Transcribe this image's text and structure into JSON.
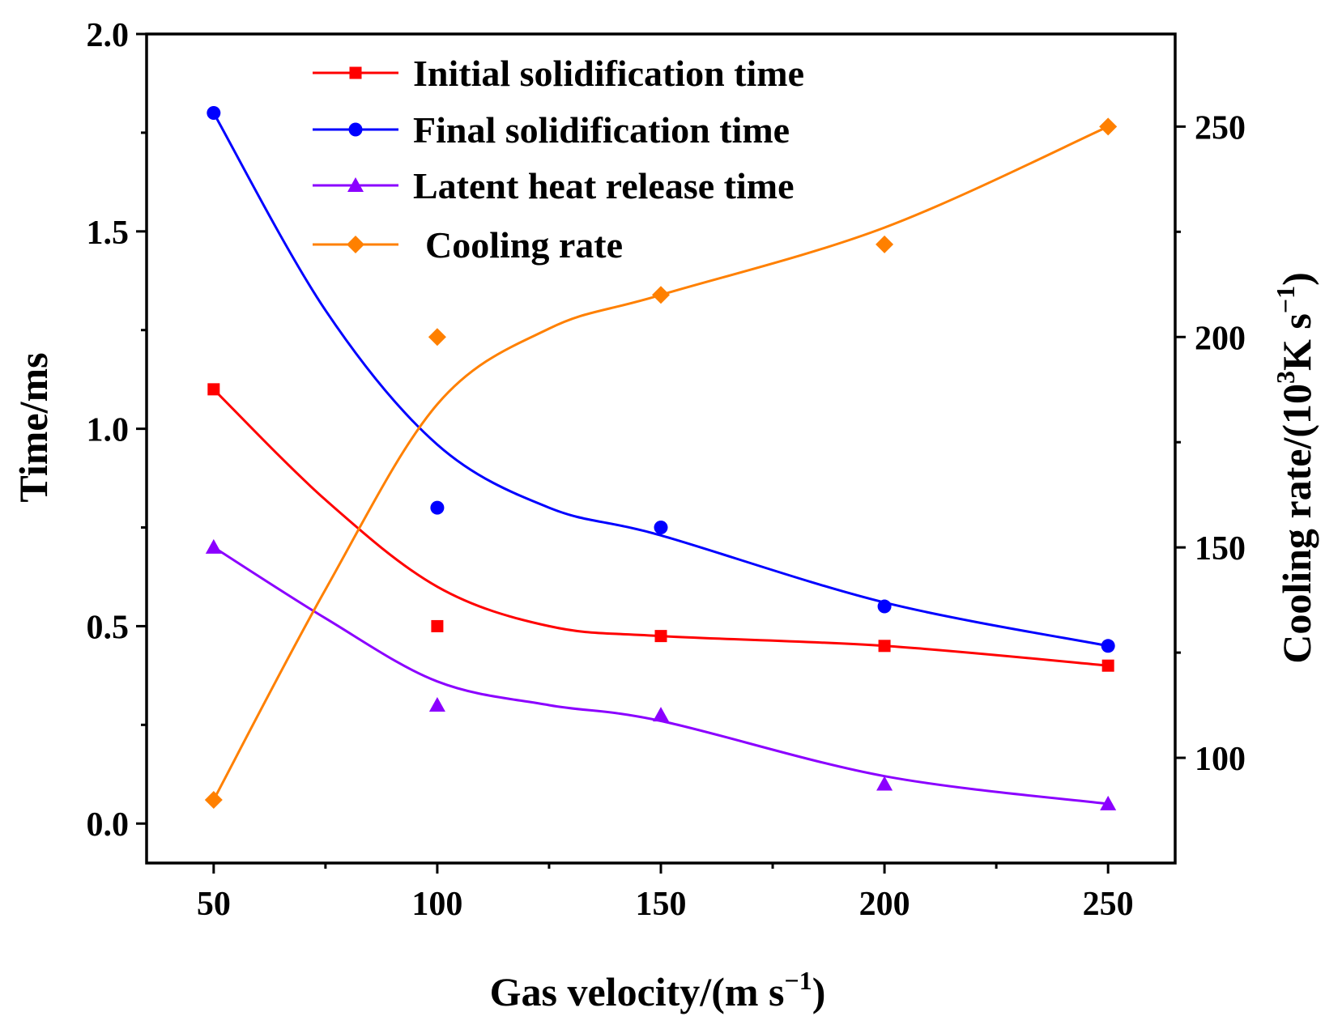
{
  "chart_data": {
    "type": "line",
    "title": "",
    "xlabel": "Gas velocity/(m s⁻¹)",
    "xlabel_parts": {
      "main": "Gas velocity/(m s",
      "sup": "−1",
      "close": ")"
    },
    "ylabel": "Time/ms",
    "y2label": "Cooling rate/(10³K s⁻¹)",
    "y2label_parts": {
      "a": "Cooling rate/(10",
      "sup1": "3",
      "b": "K s",
      "sup2": "−1",
      "c": ")"
    },
    "x": [
      50,
      100,
      150,
      200,
      250
    ],
    "xlim": [
      35,
      265
    ],
    "ylim": [
      -0.1,
      2.0
    ],
    "y2lim": [
      75,
      272
    ],
    "xticks": [
      50,
      100,
      150,
      200,
      250
    ],
    "xtick_labels": [
      "50",
      "100",
      "150",
      "200",
      "250"
    ],
    "yticks": [
      0.0,
      0.5,
      1.0,
      1.5,
      2.0
    ],
    "ytick_labels": [
      "0.0",
      "0.5",
      "1.0",
      "1.5",
      "2.0"
    ],
    "y2ticks": [
      100,
      150,
      200,
      250
    ],
    "y2tick_labels": [
      "100",
      "150",
      "200",
      "250"
    ],
    "legend_position": "top-center",
    "series": [
      {
        "name": "Initial solidification time",
        "axis": "left",
        "color": "#ff0000",
        "marker": "square",
        "values": [
          1.1,
          0.5,
          0.475,
          0.45,
          0.4
        ],
        "fit": [
          [
            50,
            1.1
          ],
          [
            75,
            0.82
          ],
          [
            100,
            0.6
          ],
          [
            125,
            0.5
          ],
          [
            150,
            0.475
          ],
          [
            200,
            0.45
          ],
          [
            250,
            0.4
          ]
        ]
      },
      {
        "name": "Final solidification time",
        "axis": "left",
        "color": "#0000ff",
        "marker": "circle",
        "values": [
          1.8,
          0.8,
          0.75,
          0.55,
          0.45
        ],
        "fit": [
          [
            50,
            1.8
          ],
          [
            75,
            1.3
          ],
          [
            100,
            0.96
          ],
          [
            125,
            0.8
          ],
          [
            150,
            0.73
          ],
          [
            200,
            0.56
          ],
          [
            250,
            0.45
          ]
        ]
      },
      {
        "name": "Latent heat release time",
        "axis": "left",
        "color": "#8b00ff",
        "marker": "triangle",
        "values": [
          0.7,
          0.3,
          0.275,
          0.1,
          0.05
        ],
        "fit": [
          [
            50,
            0.7
          ],
          [
            75,
            0.52
          ],
          [
            100,
            0.36
          ],
          [
            125,
            0.3
          ],
          [
            150,
            0.26
          ],
          [
            200,
            0.12
          ],
          [
            250,
            0.05
          ]
        ]
      },
      {
        "name": "Cooling rate",
        "axis": "right",
        "color": "#ff8000",
        "marker": "diamond",
        "values": [
          90,
          200,
          210,
          222,
          250
        ],
        "fit": [
          [
            50,
            90
          ],
          [
            75,
            140
          ],
          [
            100,
            184
          ],
          [
            125,
            202
          ],
          [
            150,
            210
          ],
          [
            200,
            226
          ],
          [
            250,
            250
          ]
        ]
      }
    ]
  }
}
